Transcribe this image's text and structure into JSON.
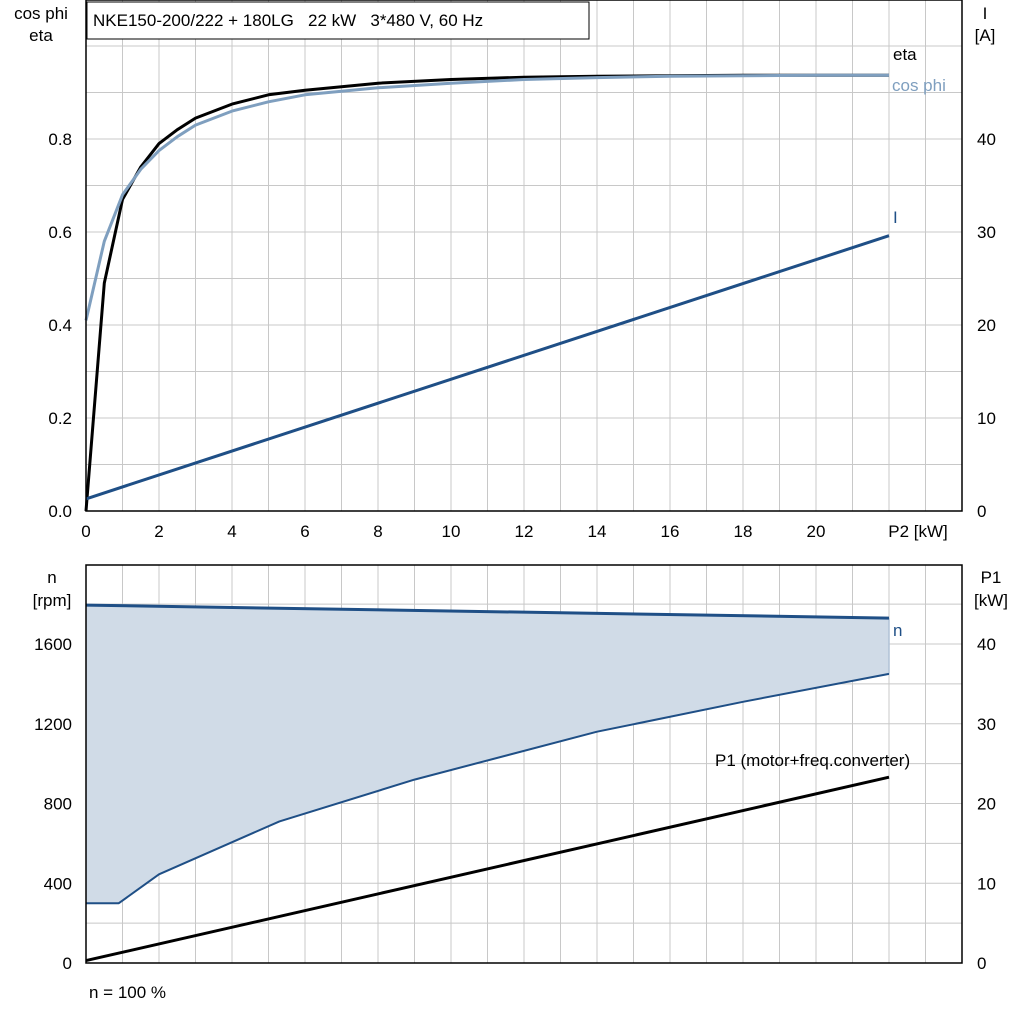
{
  "title": "NKE150-200/222 + 180LG   22 kW   3*480 V, 60 Hz",
  "footnote": "n = 100 %",
  "colors": {
    "eta": "#000000",
    "cosphi": "#7f9fbf",
    "current": "#1f4f86",
    "speed": "#1f4f86",
    "band_fill": "#d0dbe7",
    "p1": "#000000",
    "grid": "#c8c8c8"
  },
  "chart_data": [
    {
      "type": "line",
      "xlabel": "P2 [kW]",
      "x_ticks": [
        "0",
        "2",
        "4",
        "6",
        "8",
        "10",
        "12",
        "14",
        "16",
        "18",
        "20"
      ],
      "xlim": [
        0,
        24
      ],
      "ylabel_left": [
        "cos phi",
        "eta"
      ],
      "ylim_left": [
        0,
        1.0
      ],
      "y_ticks_left": [
        "0.0",
        "0.2",
        "0.4",
        "0.6",
        "0.8"
      ],
      "ylabel_right": [
        "I",
        "[A]"
      ],
      "ylim_right": [
        0,
        50
      ],
      "y_ticks_right": [
        "0",
        "10",
        "20",
        "30",
        "40"
      ],
      "grid": true,
      "series": [
        {
          "name": "eta",
          "axis": "left",
          "color": "eta",
          "x": [
            0,
            0.5,
            1,
            1.5,
            2,
            2.5,
            3,
            4,
            5,
            6,
            8,
            10,
            12,
            14,
            16,
            18,
            20,
            22
          ],
          "y": [
            0.0,
            0.49,
            0.67,
            0.74,
            0.79,
            0.82,
            0.845,
            0.875,
            0.895,
            0.905,
            0.92,
            0.928,
            0.933,
            0.935,
            0.936,
            0.937,
            0.937,
            0.937
          ]
        },
        {
          "name": "cos phi",
          "axis": "left",
          "color": "cosphi",
          "x": [
            0,
            0.5,
            1,
            1.5,
            2,
            2.5,
            3,
            4,
            5,
            6,
            8,
            10,
            12,
            14,
            16,
            18,
            20,
            22
          ],
          "y": [
            0.41,
            0.58,
            0.68,
            0.735,
            0.775,
            0.805,
            0.83,
            0.86,
            0.88,
            0.895,
            0.91,
            0.92,
            0.928,
            0.932,
            0.935,
            0.936,
            0.937,
            0.937
          ]
        },
        {
          "name": "I",
          "axis": "right",
          "color": "current",
          "x": [
            0,
            22
          ],
          "y": [
            1.3,
            29.6
          ]
        }
      ]
    },
    {
      "type": "area",
      "xlim": [
        0,
        24
      ],
      "ylabel_left": [
        "n",
        "[rpm]"
      ],
      "ylim_left": [
        0,
        2000
      ],
      "y_ticks_left": [
        "0",
        "400",
        "800",
        "1200",
        "1600"
      ],
      "ylabel_right": [
        "P1",
        "[kW]"
      ],
      "ylim_right": [
        0,
        50
      ],
      "y_ticks_right": [
        "0",
        "10",
        "20",
        "30",
        "40"
      ],
      "grid": true,
      "series": [
        {
          "name": "n",
          "axis": "left",
          "color": "speed",
          "x": [
            0,
            22
          ],
          "y": [
            1795,
            1730
          ]
        },
        {
          "name": "",
          "axis": "left",
          "color": "speed",
          "role": "min_speed",
          "x": [
            0,
            0.9,
            2,
            5.3,
            9,
            14,
            18,
            22
          ],
          "y": [
            300,
            300,
            445,
            710,
            920,
            1160,
            1310,
            1450
          ]
        },
        {
          "name": "P1 (motor+freq.converter)",
          "axis": "right",
          "color": "p1",
          "x": [
            0,
            22
          ],
          "y": [
            0.3,
            23.3
          ]
        }
      ]
    }
  ]
}
